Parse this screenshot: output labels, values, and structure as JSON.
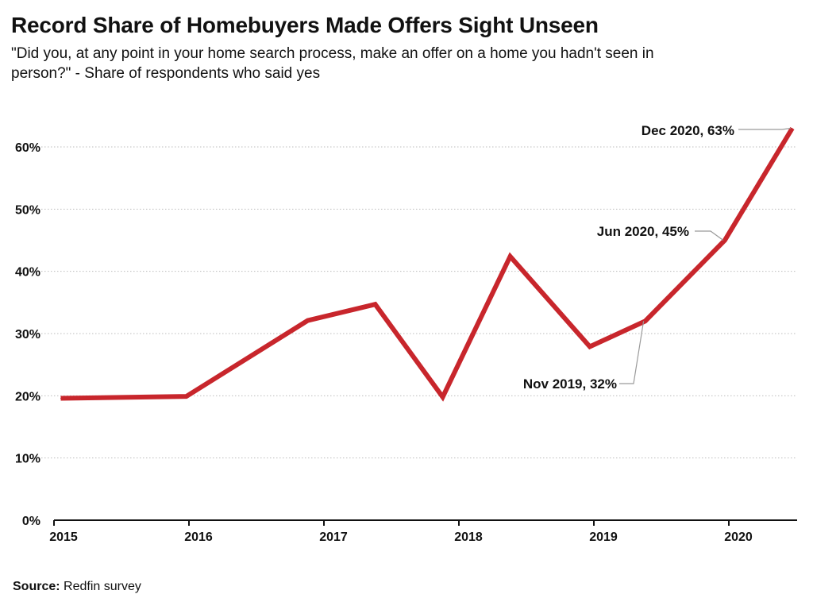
{
  "title": "Record Share of Homebuyers Made Offers Sight Unseen",
  "subtitle": "\"Did you, at any point in your home search process, make an offer on a home you hadn't seen in person?\" - Share of respondents who said yes",
  "source": {
    "key": "Source:",
    "text": "Redfin survey"
  },
  "chart_data": {
    "type": "line",
    "title": "Record Share of Homebuyers Made Offers Sight Unseen",
    "xlabel": "",
    "ylabel": "",
    "x_ticks": [
      "2015",
      "2016",
      "2017",
      "2018",
      "2019",
      "2020"
    ],
    "y_ticks": [
      "0%",
      "10%",
      "20%",
      "30%",
      "40%",
      "50%",
      "60%"
    ],
    "xlim": [
      2015.0,
      2020.5
    ],
    "ylim": [
      0,
      60
    ],
    "grid": "horizontal dotted",
    "legend": "none",
    "series": [
      {
        "color": "#c8262c",
        "points": [
          {
            "x": 2015.05,
            "y": 19.6
          },
          {
            "x": 2015.98,
            "y": 19.9
          },
          {
            "x": 2016.88,
            "y": 32.1
          },
          {
            "x": 2017.38,
            "y": 34.7
          },
          {
            "x": 2017.88,
            "y": 19.8
          },
          {
            "x": 2018.38,
            "y": 42.4
          },
          {
            "x": 2018.97,
            "y": 27.9
          },
          {
            "x": 2019.38,
            "y": 32
          },
          {
            "x": 2019.97,
            "y": 45
          },
          {
            "x": 2020.47,
            "y": 63
          }
        ]
      }
    ],
    "annotations": [
      {
        "label": "Nov 2019, 32%",
        "point_index": 7
      },
      {
        "label": "Jun 2020, 45%",
        "point_index": 8
      },
      {
        "label": "Dec 2020, 63%",
        "point_index": 9
      }
    ]
  }
}
